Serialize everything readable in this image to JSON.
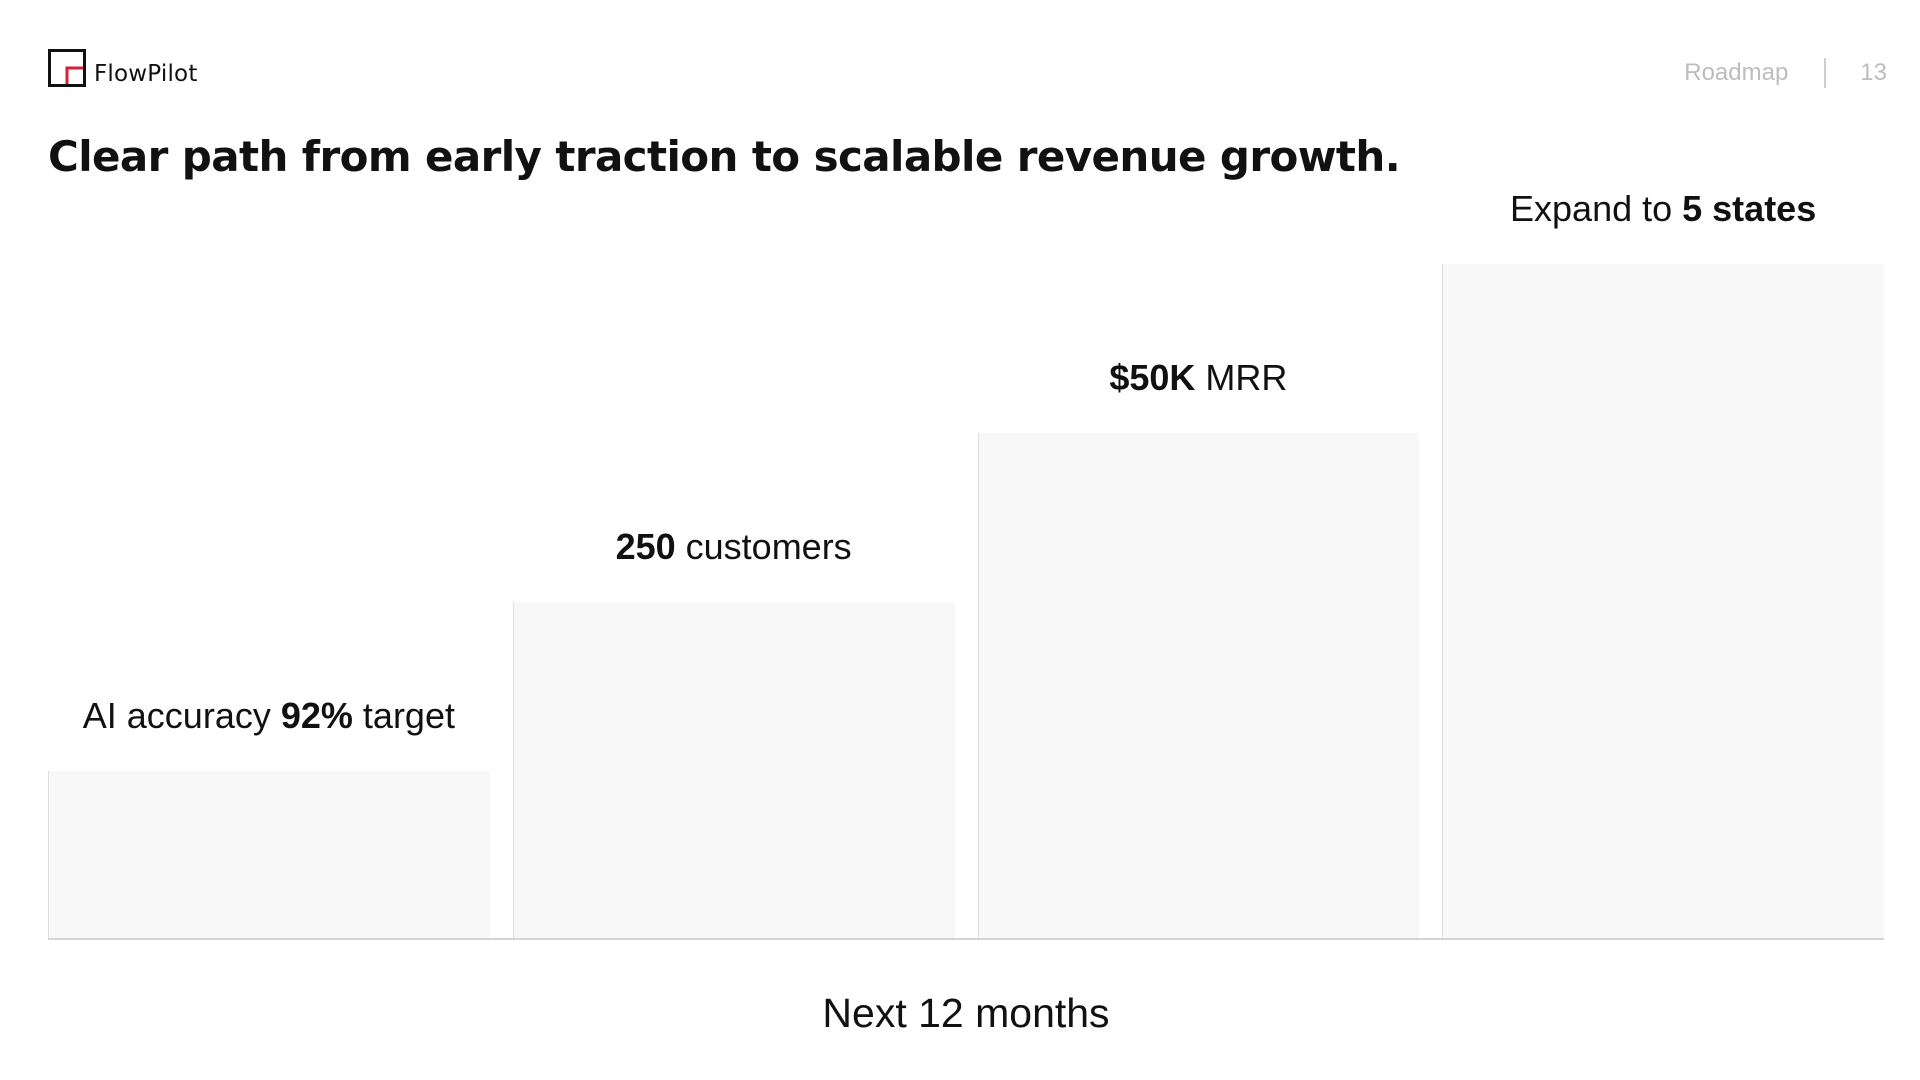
{
  "brand": {
    "name": "FlowPilot",
    "accent": "#d6203a",
    "logo_icon": "square-corner-logo-icon"
  },
  "header": {
    "section": "Roadmap",
    "page_number": "13"
  },
  "headline": "Clear path from early traction to scalable revenue growth.",
  "roadmap": {
    "timeframe": "Next 12 months",
    "steps": [
      {
        "level": 1,
        "pre": "AI accuracy ",
        "bold": "92%",
        "post": " target"
      },
      {
        "level": 2,
        "pre": "",
        "bold": "250",
        "post": " customers"
      },
      {
        "level": 3,
        "pre": "",
        "bold": "$50K",
        "post": " MRR"
      },
      {
        "level": 4,
        "pre": "Expand to ",
        "bold": "5 states",
        "post": ""
      }
    ],
    "bar_color": "#f8f8f8",
    "baseline_color": "#d4d4d4"
  }
}
